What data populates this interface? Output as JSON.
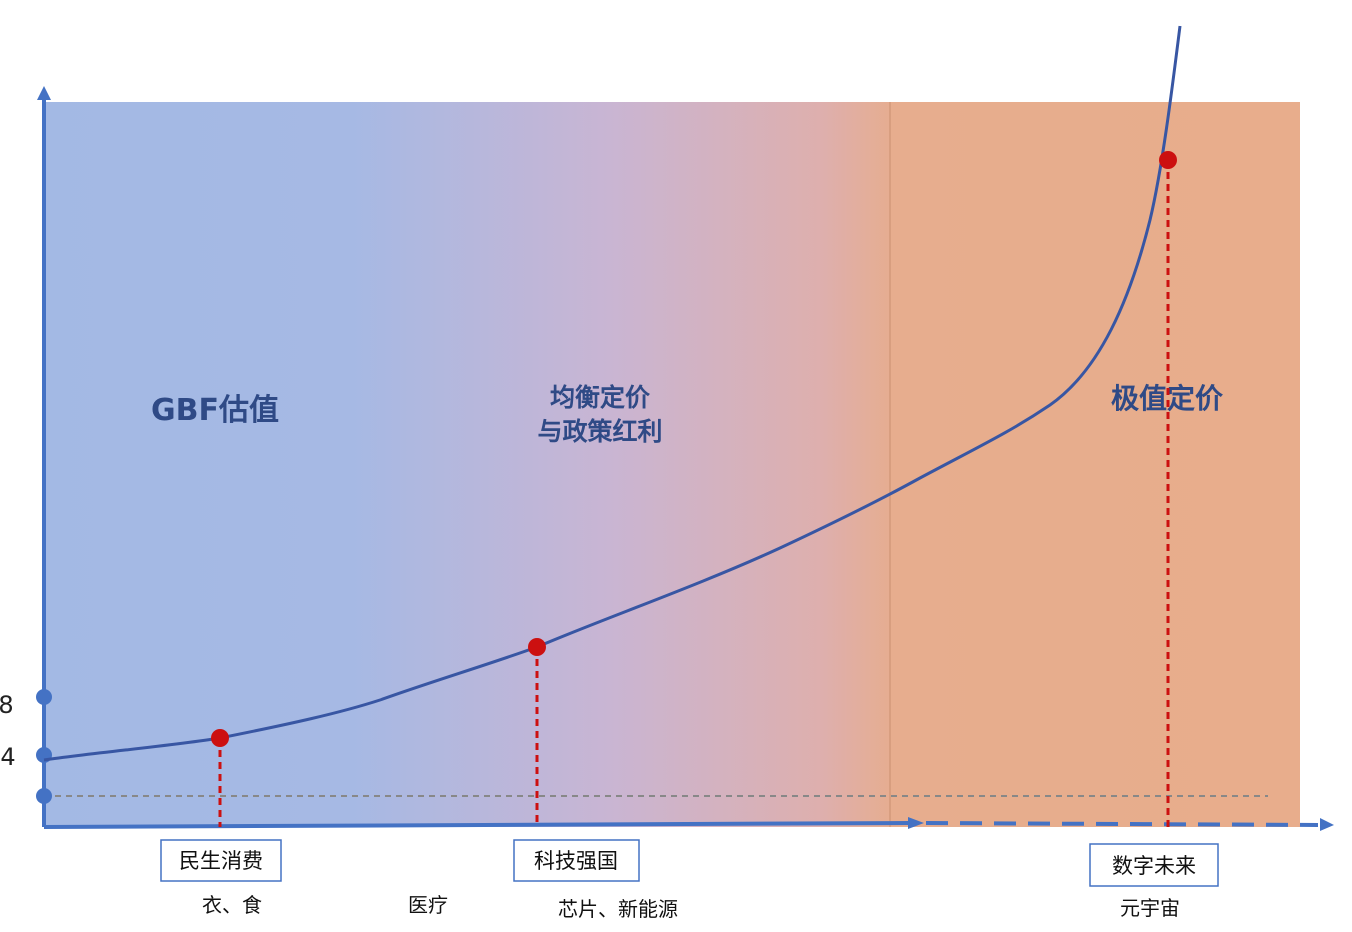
{
  "colors": {
    "zone_blue": "#a3b9e4",
    "zone_mid": "#c8b4d2",
    "zone_orange": "#e8ad8c",
    "axis": "#4472c4",
    "curve": "#3856a3",
    "marker": "#cc1010",
    "guide": "#cc1010",
    "tick_dot": "#4472c4",
    "baseline": "#888888"
  },
  "zones": {
    "left_title": "GBF估值",
    "middle_title_line1": "均衡定价",
    "middle_title_line2": "与政策红利",
    "right_title": "极值定价"
  },
  "y_ticks": [
    "8",
    "4"
  ],
  "milestones": [
    {
      "label": "民生消费",
      "sub": "衣、食"
    },
    {
      "label": "科技强国",
      "sub": "芯片、新能源"
    },
    {
      "label": "数字未来",
      "sub": "元宇宙"
    }
  ],
  "extra_sub_label": "医疗"
}
